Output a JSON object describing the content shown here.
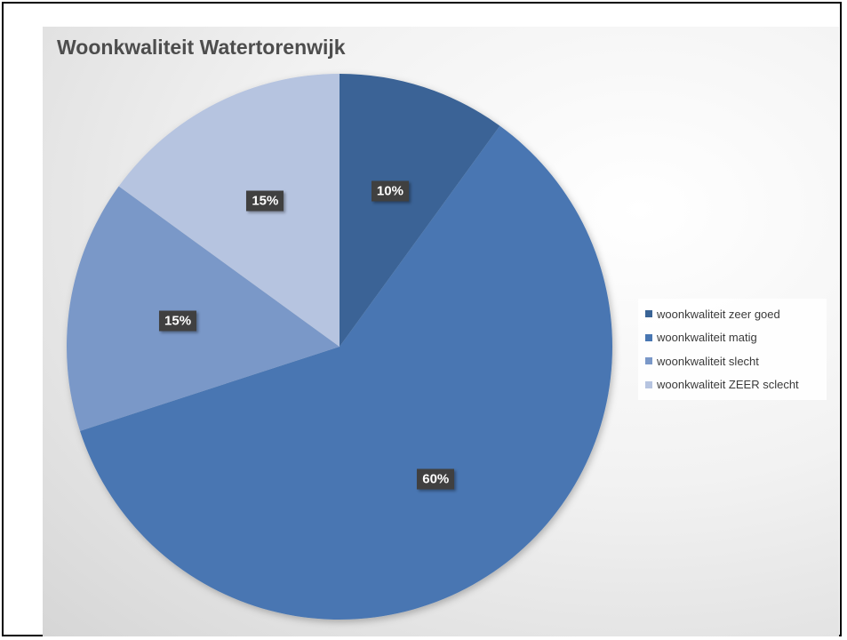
{
  "chart_data": {
    "type": "pie",
    "title": "Woonkwaliteit Watertorenwijk",
    "categories": [
      "woonkwaliteit zeer goed",
      "woonkwaliteit matig",
      "woonkwaliteit slecht",
      "woonkwaliteit ZEER sclecht"
    ],
    "values": [
      10,
      60,
      15,
      15
    ],
    "data_labels": [
      "10%",
      "60%",
      "15%",
      "15%"
    ],
    "colors": [
      "#3a6496",
      "#4876b2",
      "#7a98c8",
      "#b6c4e0"
    ],
    "legend_position": "right"
  }
}
